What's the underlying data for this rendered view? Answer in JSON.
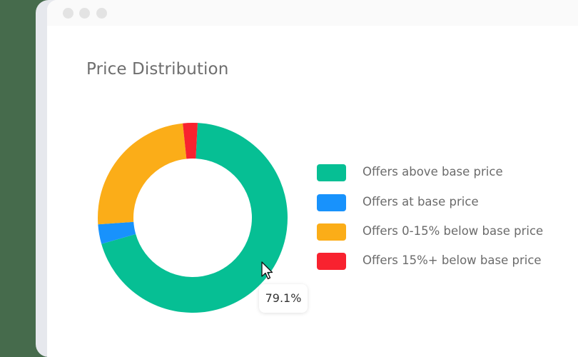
{
  "window": {
    "controls": [
      "close-dot",
      "minimize-dot",
      "maximize-dot"
    ]
  },
  "title": "Price Distribution",
  "tooltip": {
    "value": "79.1%"
  },
  "legend": [
    {
      "label": "Offers above base price",
      "color": "#06bf94"
    },
    {
      "label": "Offers at base price",
      "color": "#1892fc"
    },
    {
      "label": "Offers 0-15% below base price",
      "color": "#fbad18"
    },
    {
      "label": "Offers 15%+ below base price",
      "color": "#f8222f"
    }
  ],
  "chart_data": {
    "type": "pie",
    "subtype": "donut",
    "title": "Price Distribution",
    "categories": [
      "Offers above base price",
      "Offers at base price",
      "Offers 0-15% below base price",
      "Offers 15%+ below base price"
    ],
    "values": [
      79.1,
      3.4,
      15.0,
      2.5
    ],
    "colors": [
      "#06bf94",
      "#1892fc",
      "#fbad18",
      "#f8222f"
    ],
    "annotations": [
      {
        "text": "79.1%",
        "target": "Offers above base price",
        "type": "tooltip"
      }
    ],
    "legend_position": "right"
  }
}
